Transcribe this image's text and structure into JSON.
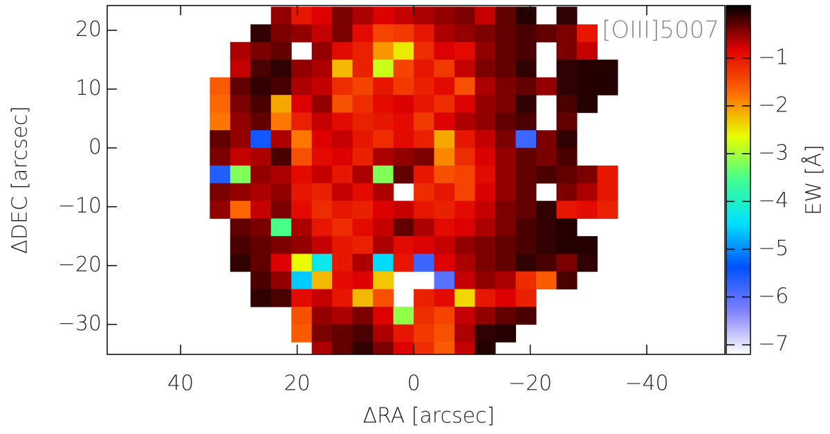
{
  "chart_data": {
    "type": "heatmap",
    "annotation": "[OIII]5007",
    "xlabel": "ΔRA [arcsec]",
    "ylabel": "ΔDEC [arcsec]",
    "colorbar_label": "EW [Å]",
    "xlim": [
      52.6,
      -53.4
    ],
    "ylim": [
      -35.1,
      24.2
    ],
    "xticks": [
      40,
      20,
      0,
      {
        "value": -20,
        "label": "−20"
      },
      {
        "value": -40,
        "label": "−40"
      }
    ],
    "yticks": [
      20,
      10,
      0,
      {
        "value": -10,
        "label": "−10"
      },
      {
        "value": -20,
        "label": "−20"
      },
      {
        "value": -30,
        "label": "−30"
      }
    ],
    "clim": [
      -7.2,
      0.1
    ],
    "cticks": [
      {
        "value": -1,
        "label": "−1"
      },
      {
        "value": -2,
        "label": "−2"
      },
      {
        "value": -3,
        "label": "−3"
      },
      {
        "value": -4,
        "label": "−4"
      },
      {
        "value": -5,
        "label": "−5"
      },
      {
        "value": -6,
        "label": "−6"
      },
      {
        "value": -7,
        "label": "−7"
      }
    ],
    "colorscale": [
      "#ffffff",
      "#8080ff",
      "#0050ff",
      "#00e0ff",
      "#40ff90",
      "#e8ff00",
      "#ff6a00",
      "#e00000",
      "#000000"
    ],
    "x": [
      33.25,
      29.75,
      26.25,
      22.75,
      19.25,
      15.75,
      12.25,
      8.75,
      5.25,
      1.75,
      -1.75,
      -5.25,
      -8.75,
      -12.25,
      -15.75,
      -19.25,
      -22.75,
      -26.25,
      -29.75,
      -33.25
    ],
    "y": [
      22.5,
      19.5,
      16.5,
      13.5,
      10.5,
      7.5,
      4.5,
      1.5,
      -1.5,
      -4.5,
      -7.5,
      -10.5,
      -13.5,
      -16.5,
      -19.5,
      -22.5,
      -25.5,
      -28.5,
      -31.5,
      -34.5
    ],
    "z": [
      [
        null,
        null,
        null,
        -0.5,
        -1,
        -0.8,
        -0.4,
        -0.6,
        -0.8,
        -0.7,
        -0.6,
        -0.5,
        -0.4,
        -0.7,
        -0.3,
        -0.05,
        null,
        -0.1,
        null,
        null
      ],
      [
        null,
        null,
        -0.1,
        -0.4,
        -0.5,
        -0.7,
        -0.4,
        -0.9,
        -1.4,
        -1.3,
        -1.0,
        -0.6,
        -0.5,
        -0.4,
        -0.3,
        -0.2,
        -0.3,
        -0.4,
        -1.0,
        null
      ],
      [
        null,
        -0.6,
        -0.4,
        -0.3,
        null,
        -0.5,
        -0.9,
        -1.1,
        -2.0,
        -2.5,
        -1.2,
        -0.8,
        -0.9,
        -0.5,
        -0.3,
        -0.2,
        null,
        -0.4,
        -0.7,
        null
      ],
      [
        null,
        -0.7,
        -0.2,
        -0.1,
        -0.5,
        -0.6,
        -2.2,
        -1.1,
        -2.8,
        -1.4,
        -1.0,
        -1.3,
        -0.7,
        -0.4,
        -0.3,
        -0.1,
        null,
        -0.1,
        -0.05,
        -0.05
      ],
      [
        -1.6,
        -0.3,
        -0.1,
        -0.2,
        -0.6,
        -0.7,
        -1.2,
        -1.4,
        -1.0,
        -1.3,
        -1.1,
        -0.9,
        -1.5,
        -0.6,
        -0.4,
        -0.3,
        -0.5,
        -0.1,
        -0.05,
        -0.05
      ],
      [
        -1.7,
        -0.4,
        -0.2,
        -2.1,
        -0.8,
        -0.5,
        -1.5,
        -1.2,
        -0.9,
        -0.8,
        -1.0,
        -1.2,
        -0.8,
        -0.5,
        -0.4,
        -0.1,
        null,
        -0.2,
        -0.05,
        null
      ],
      [
        -1.8,
        -0.5,
        -0.3,
        -1.8,
        -1.1,
        -0.7,
        -0.9,
        -1.1,
        -1.0,
        -0.9,
        -1.3,
        -0.8,
        -0.6,
        -0.5,
        -0.3,
        -0.2,
        null,
        -0.3,
        null,
        null
      ],
      [
        -0.3,
        -0.5,
        -5.5,
        -0.6,
        -1.8,
        -0.8,
        -0.7,
        -1.0,
        -1.2,
        -0.9,
        -1.1,
        -2.1,
        -1.0,
        -0.7,
        -0.4,
        -5.8,
        -0.4,
        -0.1,
        null,
        null
      ],
      [
        -0.4,
        -0.7,
        -0.6,
        -0.2,
        -1.5,
        -0.9,
        -0.8,
        -1.1,
        -0.6,
        -0.5,
        -0.4,
        -1.9,
        -1.2,
        -0.8,
        -0.5,
        -0.3,
        -0.4,
        -0.2,
        null,
        null
      ],
      [
        -5.6,
        -3.2,
        -0.5,
        -0.6,
        -0.9,
        -0.7,
        -1.0,
        -0.6,
        -3.2,
        -0.3,
        -1.0,
        -1.5,
        -1.4,
        -0.9,
        -0.5,
        -0.3,
        -0.2,
        -0.3,
        -0.4,
        -1.0
      ],
      [
        -0.4,
        -0.5,
        -0.6,
        -0.5,
        -1.0,
        -1.1,
        -0.7,
        -0.9,
        -0.6,
        null,
        -1.2,
        -1.0,
        -1.4,
        -0.8,
        -0.5,
        -0.3,
        null,
        -0.4,
        -0.6,
        -1.0
      ],
      [
        -0.5,
        -1.7,
        -0.7,
        -0.4,
        -0.9,
        -1.2,
        -1.0,
        -1.1,
        -0.8,
        -0.7,
        -1.0,
        -1.1,
        -0.9,
        -0.7,
        -0.4,
        -0.3,
        -0.1,
        -1.0,
        -0.9,
        -1.1
      ],
      [
        null,
        -0.3,
        -0.4,
        -3.5,
        -0.6,
        -1.0,
        -1.2,
        -0.9,
        -0.7,
        -0.3,
        -0.6,
        -0.9,
        -0.8,
        -0.6,
        -0.4,
        -0.2,
        -0.1,
        -0.05,
        null,
        null
      ],
      [
        null,
        -0.2,
        -0.3,
        -0.4,
        -0.5,
        -0.7,
        -1.0,
        -1.1,
        -0.6,
        -0.9,
        -0.8,
        -0.7,
        -0.5,
        -0.4,
        -0.3,
        -0.2,
        -0.1,
        -0.05,
        -0.05,
        null
      ],
      [
        null,
        -0.1,
        -0.3,
        -0.8,
        -2.6,
        -4.3,
        -1.0,
        -0.6,
        -4.5,
        -1.0,
        -5.8,
        -0.8,
        -0.6,
        -0.4,
        -0.3,
        -0.1,
        -0.2,
        -0.4,
        -0.1,
        null
      ],
      [
        null,
        null,
        -0.2,
        -0.5,
        -4.6,
        -2.2,
        -0.9,
        -0.8,
        -2.3,
        null,
        null,
        -6.0,
        -0.7,
        -0.5,
        -0.6,
        -1.2,
        -1.6,
        -0.2,
        null,
        null
      ],
      [
        null,
        null,
        -0.1,
        -0.2,
        -0.9,
        -0.7,
        -1.0,
        -2.2,
        -1.5,
        null,
        -1.1,
        -0.9,
        -2.4,
        -1.0,
        -0.8,
        -1.1,
        null,
        null,
        null,
        null
      ],
      [
        null,
        null,
        null,
        null,
        -1.5,
        -0.5,
        -0.6,
        -0.4,
        -0.8,
        -3.1,
        -1.2,
        -1.4,
        -0.7,
        -0.5,
        -0.3,
        -0.2,
        null,
        null,
        null,
        null
      ],
      [
        null,
        null,
        null,
        null,
        -1.6,
        -0.4,
        -0.3,
        -0.2,
        -0.6,
        -1.0,
        -1.3,
        -1.5,
        -0.6,
        -0.1,
        -0.05,
        null,
        null,
        null,
        null,
        null
      ],
      [
        null,
        null,
        null,
        null,
        null,
        -0.6,
        -0.3,
        -0.1,
        -0.4,
        -0.8,
        -1.2,
        -1.6,
        -0.7,
        -0.05,
        null,
        null,
        null,
        null,
        null,
        null
      ]
    ]
  }
}
